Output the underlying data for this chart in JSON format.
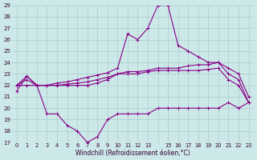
{
  "background_color": "#cce8e8",
  "grid_color": "#aacccc",
  "line_color": "#880088",
  "x_labels": [
    "0",
    "1",
    "2",
    "3",
    "4",
    "5",
    "6",
    "7",
    "8",
    "9",
    "10",
    "11",
    "12",
    "13",
    "",
    "15",
    "16",
    "17",
    "18",
    "19",
    "20",
    "21",
    "22",
    "23"
  ],
  "ylim": [
    17,
    29
  ],
  "xlim": [
    -0.5,
    23.5
  ],
  "yticks": [
    17,
    18,
    19,
    20,
    21,
    22,
    23,
    24,
    25,
    26,
    27,
    28,
    29
  ],
  "xlabel": "Windchill (Refroidissement éolien,°C)",
  "line1": [
    22.0,
    22.8,
    22.0,
    22.0,
    22.2,
    22.3,
    22.5,
    22.7,
    22.9,
    23.1,
    23.5,
    26.5,
    26.0,
    27.0,
    29.0,
    29.0,
    25.5,
    25.0,
    24.5,
    24.0,
    24.0,
    23.5,
    23.0,
    21.0
  ],
  "line2": [
    22.0,
    22.5,
    22.0,
    22.0,
    22.0,
    22.0,
    22.0,
    22.0,
    22.2,
    22.5,
    23.0,
    23.0,
    23.0,
    23.2,
    23.3,
    23.3,
    23.3,
    23.3,
    23.3,
    23.4,
    23.5,
    22.5,
    22.0,
    20.5
  ],
  "line3": [
    21.5,
    22.8,
    22.0,
    22.0,
    22.0,
    22.1,
    22.2,
    22.3,
    22.5,
    22.7,
    23.0,
    23.2,
    23.2,
    23.3,
    23.5,
    23.5,
    23.5,
    23.7,
    23.8,
    23.8,
    24.0,
    23.0,
    22.5,
    20.5
  ],
  "line4": [
    22.0,
    22.0,
    22.0,
    19.5,
    19.5,
    18.5,
    18.0,
    17.0,
    17.5,
    19.0,
    19.5,
    19.5,
    19.5,
    19.5,
    20.0,
    20.0,
    20.0,
    20.0,
    20.0,
    20.0,
    20.0,
    20.5,
    20.0,
    20.5
  ]
}
